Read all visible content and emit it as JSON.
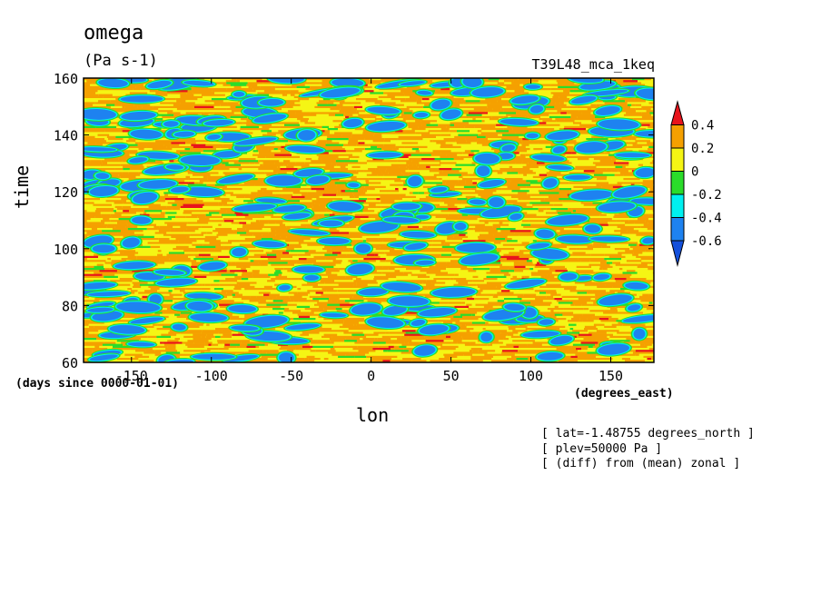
{
  "chart_data": {
    "type": "heatmap",
    "title": "omega",
    "units": "(Pa s-1)",
    "run_label": "T39L48_mca_1keq",
    "xlabel": "lon",
    "xunits": "(degrees_east)",
    "ylabel": "time",
    "yunits": "(days since 0000-01-01)",
    "xlim": [
      -180,
      177
    ],
    "ylim": [
      60,
      160
    ],
    "x_ticks": [
      "-150",
      "-100",
      "-50",
      "0",
      "50",
      "100",
      "150"
    ],
    "y_ticks": [
      "60",
      "80",
      "100",
      "120",
      "140",
      "160"
    ],
    "colorbar": {
      "labels": [
        "0.4",
        "0.2",
        "0",
        "-0.2",
        "-0.4",
        "-0.6"
      ],
      "levels": [
        {
          "range": "> 0.4",
          "color": "#e8141c"
        },
        {
          "range": "0.2 – 0.4",
          "color": "#f5a000"
        },
        {
          "range": "0 – 0.2",
          "color": "#f5f514"
        },
        {
          "range": "-0.2 – 0",
          "color": "#2adc2a"
        },
        {
          "range": "-0.4 – -0.2",
          "color": "#00f0f0"
        },
        {
          "range": "-0.6 – -0.4",
          "color": "#1e82f0"
        },
        {
          "range": "< -0.6",
          "color": "#1450dc"
        }
      ]
    },
    "annotations": [
      "[ lat=-1.48755 degrees_north ]",
      "[ plev=50000 Pa ]",
      "[ (diff) from (mean) zonal ]"
    ],
    "grid": false
  }
}
